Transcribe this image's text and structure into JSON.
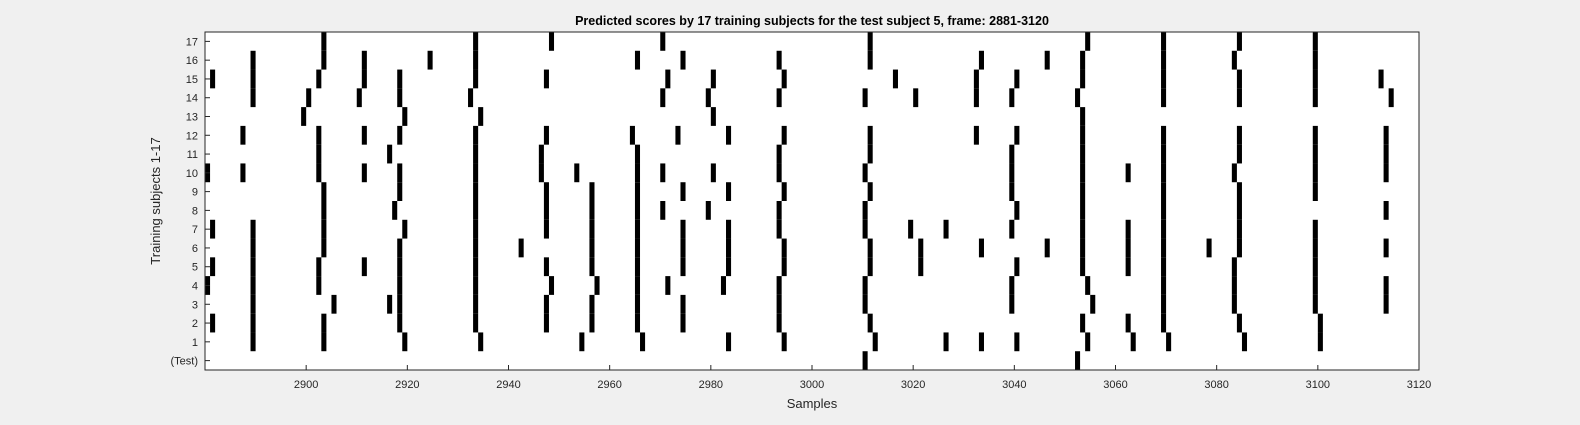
{
  "chart_data": {
    "type": "heatmap",
    "title": "Predicted scores by 17 training subjects for the test subject 5, frame: 2881-3120",
    "xlabel": "Samples",
    "ylabel": "Training subjects 1-17",
    "xlim": [
      2880,
      3120
    ],
    "xticks": [
      2900,
      2920,
      2940,
      2960,
      2980,
      3000,
      3020,
      3040,
      3060,
      3080,
      3100,
      3120
    ],
    "yticklabels": [
      "(Test)",
      "1",
      "2",
      "3",
      "4",
      "5",
      "6",
      "7",
      "8",
      "9",
      "10",
      "11",
      "12",
      "13",
      "14",
      "15",
      "16",
      "17"
    ],
    "colors": {
      "mark": "#000000",
      "background": "#ffffff",
      "figure": "#f0f0f0"
    },
    "rows": [
      {
        "label": "(Test)",
        "x": [
          3011,
          3053
        ]
      },
      {
        "label": "1",
        "x": [
          2890,
          2904,
          2920,
          2935,
          2955,
          2967,
          2984,
          2995,
          3013,
          3027,
          3034,
          3041,
          3055,
          3064,
          3071,
          3086,
          3101
        ]
      },
      {
        "label": "2",
        "x": [
          2882,
          2890,
          2904,
          2919,
          2934,
          2948,
          2957,
          2966,
          2975,
          2994,
          3012,
          3054,
          3063,
          3070,
          3085,
          3101
        ]
      },
      {
        "label": "3",
        "x": [
          2890,
          2906,
          2917,
          2919,
          2934,
          2948,
          2957,
          2966,
          2975,
          2994,
          3011,
          3040,
          3056,
          3070,
          3084,
          3100,
          3114
        ]
      },
      {
        "label": "4",
        "x": [
          2881,
          2890,
          2903,
          2919,
          2934,
          2949,
          2958,
          2966,
          2972,
          2983,
          2994,
          3011,
          3040,
          3055,
          3070,
          3084,
          3100,
          3114
        ]
      },
      {
        "label": "5",
        "x": [
          2882,
          2890,
          2903,
          2912,
          2919,
          2934,
          2948,
          2957,
          2966,
          2975,
          2984,
          2995,
          3012,
          3022,
          3041,
          3054,
          3063,
          3070,
          3084,
          3100
        ]
      },
      {
        "label": "6",
        "x": [
          2890,
          2904,
          2919,
          2934,
          2943,
          2957,
          2966,
          2975,
          2984,
          2995,
          3012,
          3022,
          3034,
          3047,
          3054,
          3063,
          3070,
          3079,
          3085,
          3100,
          3114
        ]
      },
      {
        "label": "7",
        "x": [
          2882,
          2890,
          2904,
          2920,
          2934,
          2948,
          2957,
          2966,
          2975,
          2984,
          2994,
          3011,
          3020,
          3027,
          3040,
          3054,
          3063,
          3070,
          3085,
          3100
        ]
      },
      {
        "label": "8",
        "x": [
          2904,
          2918,
          2934,
          2948,
          2957,
          2966,
          2971,
          2980,
          2994,
          3011,
          3041,
          3054,
          3070,
          3085,
          3114
        ]
      },
      {
        "label": "9",
        "x": [
          2904,
          2919,
          2934,
          2948,
          2957,
          2966,
          2975,
          2984,
          2995,
          3012,
          3040,
          3054,
          3070,
          3085,
          3100
        ]
      },
      {
        "label": "10",
        "x": [
          2881,
          2888,
          2903,
          2912,
          2919,
          2934,
          2947,
          2954,
          2966,
          2971,
          2981,
          2994,
          3011,
          3040,
          3054,
          3063,
          3070,
          3084,
          3100,
          3114
        ]
      },
      {
        "label": "11",
        "x": [
          2903,
          2917,
          2934,
          2947,
          2966,
          2994,
          3012,
          3040,
          3054,
          3070,
          3085,
          3100,
          3114
        ]
      },
      {
        "label": "12",
        "x": [
          2888,
          2903,
          2912,
          2919,
          2934,
          2948,
          2965,
          2974,
          2984,
          2995,
          3012,
          3033,
          3041,
          3054,
          3070,
          3085,
          3100,
          3114
        ]
      },
      {
        "label": "13",
        "x": [
          2900,
          2920,
          2935,
          2981,
          3054
        ]
      },
      {
        "label": "14",
        "x": [
          2890,
          2901,
          2911,
          2919,
          2933,
          2971,
          2980,
          2994,
          3011,
          3021,
          3033,
          3040,
          3053,
          3070,
          3085,
          3100,
          3115
        ]
      },
      {
        "label": "15",
        "x": [
          2882,
          2890,
          2903,
          2912,
          2919,
          2934,
          2948,
          2972,
          2981,
          2995,
          3017,
          3033,
          3041,
          3054,
          3070,
          3085,
          3100,
          3113
        ]
      },
      {
        "label": "16",
        "x": [
          2890,
          2904,
          2912,
          2925,
          2934,
          2966,
          2975,
          2994,
          3012,
          3034,
          3047,
          3054,
          3070,
          3084,
          3100
        ]
      },
      {
        "label": "17",
        "x": [
          2904,
          2934,
          2949,
          2971,
          3012,
          3055,
          3070,
          3085,
          3100
        ]
      }
    ]
  }
}
